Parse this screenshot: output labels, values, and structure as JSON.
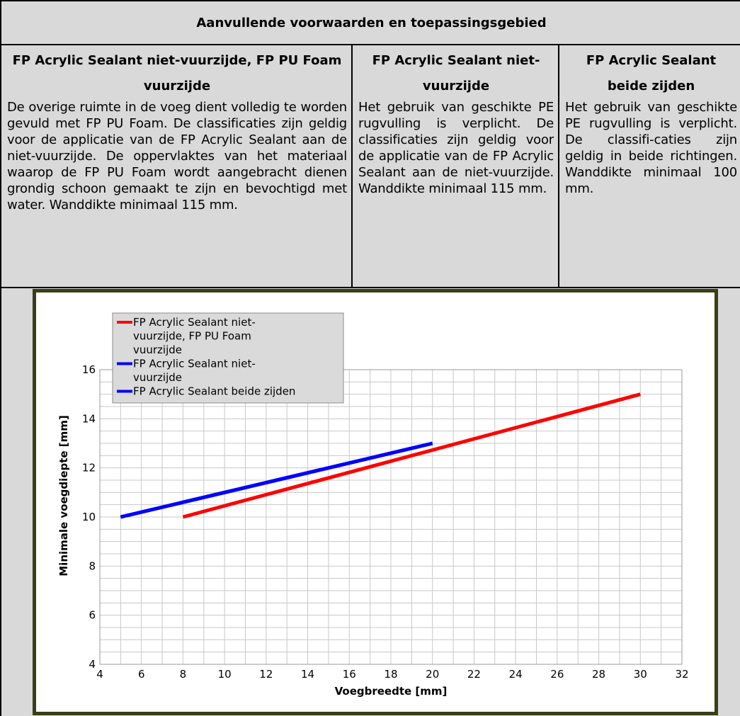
{
  "title": "Aanvullende voorwaarden en toepassingsgebied",
  "columns": [
    {
      "header": "FP Acrylic Sealant niet-vuurzijde, FP PU Foam vuurzijde",
      "body": "De overige ruimte in de voeg dient volledig te worden gevuld met FP PU Foam. De classificaties zijn geldig voor de applicatie van de FP Acrylic Sealant aan de niet-vuurzijde. De oppervlaktes van het materiaal waarop de FP PU Foam wordt aangebracht dienen grondig schoon gemaakt te zijn en bevochtigd met water. Wanddikte minimaal 115 mm."
    },
    {
      "header": "FP Acrylic Sealant niet-vuurzijde",
      "body": "Het gebruik van geschikte PE rugvulling is verplicht. De classificaties zijn geldig voor de applicatie van de FP Acrylic Sealant aan de niet-vuurzijde. Wanddikte minimaal 115 mm."
    },
    {
      "header": "FP Acrylic Sealant beide zijden",
      "body": "Het gebruik van geschikte PE rugvulling is verplicht. De classifi-caties zijn geldig in beide richtingen. Wanddikte minimaal 100 mm."
    }
  ],
  "chart_data": {
    "type": "line",
    "xlabel": "Voegbreedte [mm]",
    "ylabel": "Minimale voegdiepte [mm]",
    "xlim": [
      4,
      32
    ],
    "ylim": [
      4,
      16
    ],
    "xticks": [
      4,
      6,
      8,
      10,
      12,
      14,
      16,
      18,
      20,
      22,
      24,
      26,
      28,
      30,
      32
    ],
    "yticks": [
      4,
      6,
      8,
      10,
      12,
      14,
      16
    ],
    "grid": true,
    "legend_placement": "top-left",
    "series": [
      {
        "name": "FP Acrylic Sealant niet-vuurzijde, FP PU Foam vuurzijde",
        "legend_lines": [
          "FP Acrylic Sealant niet-",
          "vuurzijde, FP PU Foam",
          "vuurzijde"
        ],
        "color": "#ff0000",
        "x": [
          8,
          30
        ],
        "y": [
          10,
          15
        ]
      },
      {
        "name": "FP Acrylic Sealant niet-vuurzijde",
        "legend_lines": [
          "FP Acrylic Sealant niet-",
          "vuurzijde"
        ],
        "color": "#0000ff",
        "x": [
          5,
          20
        ],
        "y": [
          10,
          13
        ]
      },
      {
        "name": "FP Acrylic Sealant beide zijden",
        "legend_lines": [
          "FP Acrylic Sealant beide zijden"
        ],
        "color": "#0000ff",
        "x": [
          5,
          20
        ],
        "y": [
          10,
          13
        ]
      }
    ]
  }
}
